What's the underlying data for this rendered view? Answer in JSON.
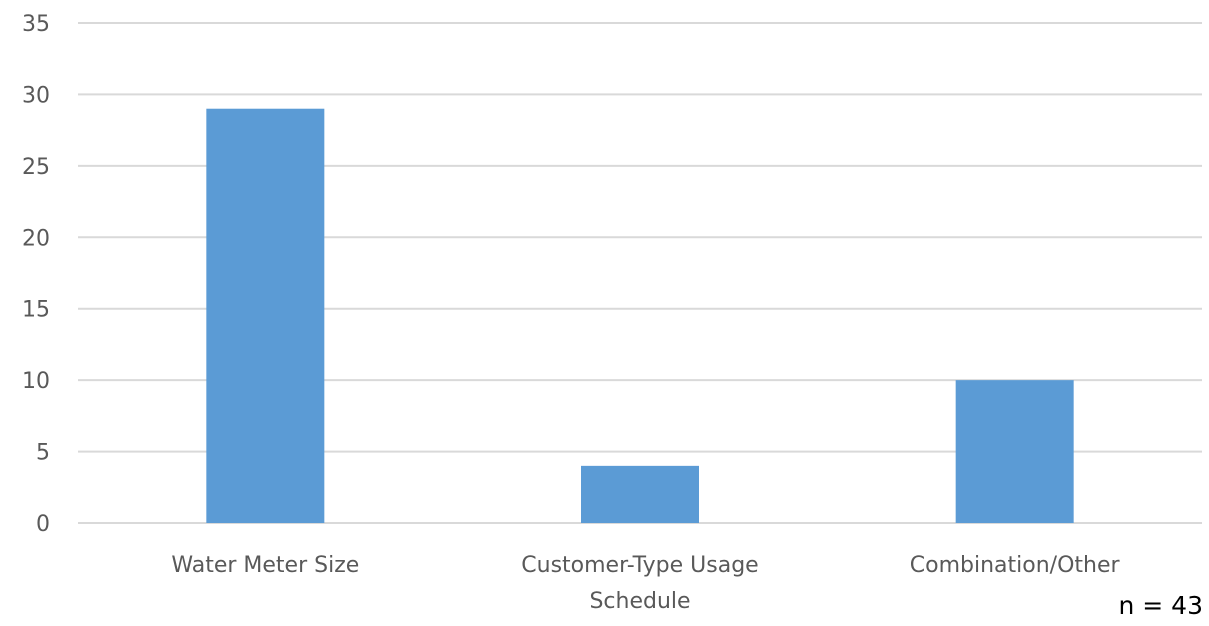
{
  "chart_data": {
    "type": "bar",
    "title": "",
    "xlabel": "",
    "ylabel": "",
    "categories": [
      "Water Meter Size",
      "Customer-Type Usage Schedule",
      "Combination/Other"
    ],
    "category_lines": [
      [
        "Water Meter Size"
      ],
      [
        "Customer-Type Usage",
        "Schedule"
      ],
      [
        "Combination/Other"
      ]
    ],
    "values": [
      29,
      4,
      10
    ],
    "ylim": [
      0,
      35
    ],
    "yticks": [
      0,
      5,
      10,
      15,
      20,
      25,
      30,
      35
    ],
    "grid": "horizontal",
    "legend": "none",
    "bar_color": "#5b9bd5",
    "annotation": "n = 43"
  }
}
